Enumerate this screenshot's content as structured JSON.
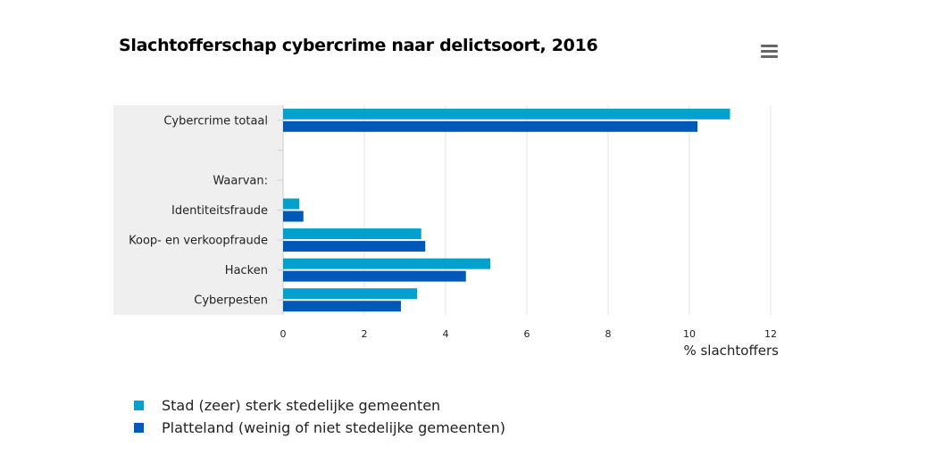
{
  "chart_data": {
    "type": "bar",
    "orientation": "horizontal",
    "title": "Slachtofferschap cybercrime naar delictsoort, 2016",
    "xlabel": "% slachtoffers",
    "ylabel": "",
    "categories": [
      "Cybercrime totaal",
      "",
      "Waarvan:",
      "Identiteitsfraude",
      "Koop- en verkoopfraude",
      "Hacken",
      "Cyberpesten"
    ],
    "series": [
      {
        "name": "Stad (zeer) sterk stedelijke gemeenten",
        "color": "#00a1cd",
        "values": [
          11.0,
          null,
          null,
          0.4,
          3.4,
          5.1,
          3.3
        ]
      },
      {
        "name": "Platteland (weinig of niet stedelijke gemeenten)",
        "color": "#0058b8",
        "values": [
          10.2,
          null,
          null,
          0.5,
          3.5,
          4.5,
          2.9
        ]
      }
    ],
    "xlim": [
      0,
      12
    ],
    "xticks": [
      0,
      2,
      4,
      6,
      8,
      10,
      12
    ],
    "grid": "vertical",
    "legend_position": "bottom-left",
    "plot_band_color": "#efefef"
  },
  "menu": {
    "icon": "hamburger-menu-icon"
  }
}
